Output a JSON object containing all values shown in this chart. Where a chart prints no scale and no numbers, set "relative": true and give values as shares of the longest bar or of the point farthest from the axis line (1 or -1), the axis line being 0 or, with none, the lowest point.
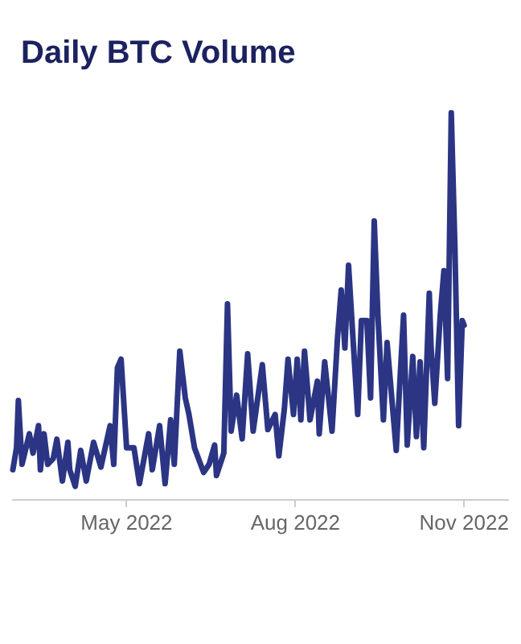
{
  "chart_data": {
    "type": "line",
    "title": "Daily BTC Volume",
    "relative": true,
    "xlim": [
      "2022-02-28",
      "2022-11-25"
    ],
    "xticks": [
      {
        "value": "2022-05-01",
        "label": "May 2022"
      },
      {
        "value": "2022-08-01",
        "label": "Aug 2022"
      },
      {
        "value": "2022-11-01",
        "label": "Nov 2022"
      }
    ],
    "marker": "none",
    "line_style": "solid",
    "series": [
      {
        "color": "#2b3584",
        "x": [
          "2022-02-28",
          "2022-03-02",
          "2022-03-03",
          "2022-03-05",
          "2022-03-09",
          "2022-03-11",
          "2022-03-14",
          "2022-03-15",
          "2022-03-17",
          "2022-03-19",
          "2022-03-22",
          "2022-03-24",
          "2022-03-27",
          "2022-03-30",
          "2022-03-31",
          "2022-04-03",
          "2022-04-06",
          "2022-04-09",
          "2022-04-13",
          "2022-04-17",
          "2022-04-22",
          "2022-04-24",
          "2022-04-26",
          "2022-04-28",
          "2022-05-01",
          "2022-05-05",
          "2022-05-08",
          "2022-05-13",
          "2022-05-15",
          "2022-05-19",
          "2022-05-22",
          "2022-05-25",
          "2022-05-27",
          "2022-05-30",
          "2022-06-02",
          "2022-06-04",
          "2022-06-07",
          "2022-06-12",
          "2022-06-15",
          "2022-06-18",
          "2022-06-19",
          "2022-06-23",
          "2022-06-25",
          "2022-06-27",
          "2022-06-30",
          "2022-07-03",
          "2022-07-06",
          "2022-07-09",
          "2022-07-14",
          "2022-07-17",
          "2022-07-21",
          "2022-07-23",
          "2022-07-26",
          "2022-07-28",
          "2022-07-31",
          "2022-08-02",
          "2022-08-04",
          "2022-08-06",
          "2022-08-09",
          "2022-08-13",
          "2022-08-14",
          "2022-08-17",
          "2022-08-21",
          "2022-08-24",
          "2022-08-26",
          "2022-08-28",
          "2022-08-30",
          "2022-09-01",
          "2022-09-04",
          "2022-09-06",
          "2022-09-09",
          "2022-09-11",
          "2022-09-13",
          "2022-09-15",
          "2022-09-18",
          "2022-09-20",
          "2022-09-25",
          "2022-09-27",
          "2022-09-29",
          "2022-10-01",
          "2022-10-04",
          "2022-10-06",
          "2022-10-08",
          "2022-10-10",
          "2022-10-13",
          "2022-10-14",
          "2022-10-16",
          "2022-10-19",
          "2022-10-21",
          "2022-10-23",
          "2022-10-25",
          "2022-10-27",
          "2022-10-29",
          "2022-10-31",
          "2022-11-01"
        ],
        "values": [
          0.076,
          0.133,
          0.255,
          0.09,
          0.169,
          0.119,
          0.19,
          0.076,
          0.169,
          0.09,
          0.105,
          0.155,
          0.047,
          0.147,
          0.076,
          0.033,
          0.126,
          0.047,
          0.147,
          0.083,
          0.19,
          0.09,
          0.34,
          0.362,
          0.133,
          0.133,
          0.04,
          0.169,
          0.076,
          0.19,
          0.04,
          0.205,
          0.09,
          0.383,
          0.262,
          0.219,
          0.133,
          0.069,
          0.09,
          0.14,
          0.061,
          0.119,
          0.505,
          0.176,
          0.269,
          0.156,
          0.376,
          0.176,
          0.348,
          0.18,
          0.219,
          0.112,
          0.233,
          0.362,
          0.219,
          0.362,
          0.205,
          0.383,
          0.205,
          0.305,
          0.169,
          0.355,
          0.176,
          0.419,
          0.541,
          0.391,
          0.605,
          0.448,
          0.219,
          0.462,
          0.462,
          0.262,
          0.72,
          0.476,
          0.205,
          0.405,
          0.126,
          0.305,
          0.476,
          0.14,
          0.369,
          0.162,
          0.355,
          0.133,
          0.533,
          0.391,
          0.248,
          0.476,
          0.591,
          0.312,
          1,
          0.648,
          0.19,
          0.462,
          0.45
        ]
      }
    ]
  }
}
